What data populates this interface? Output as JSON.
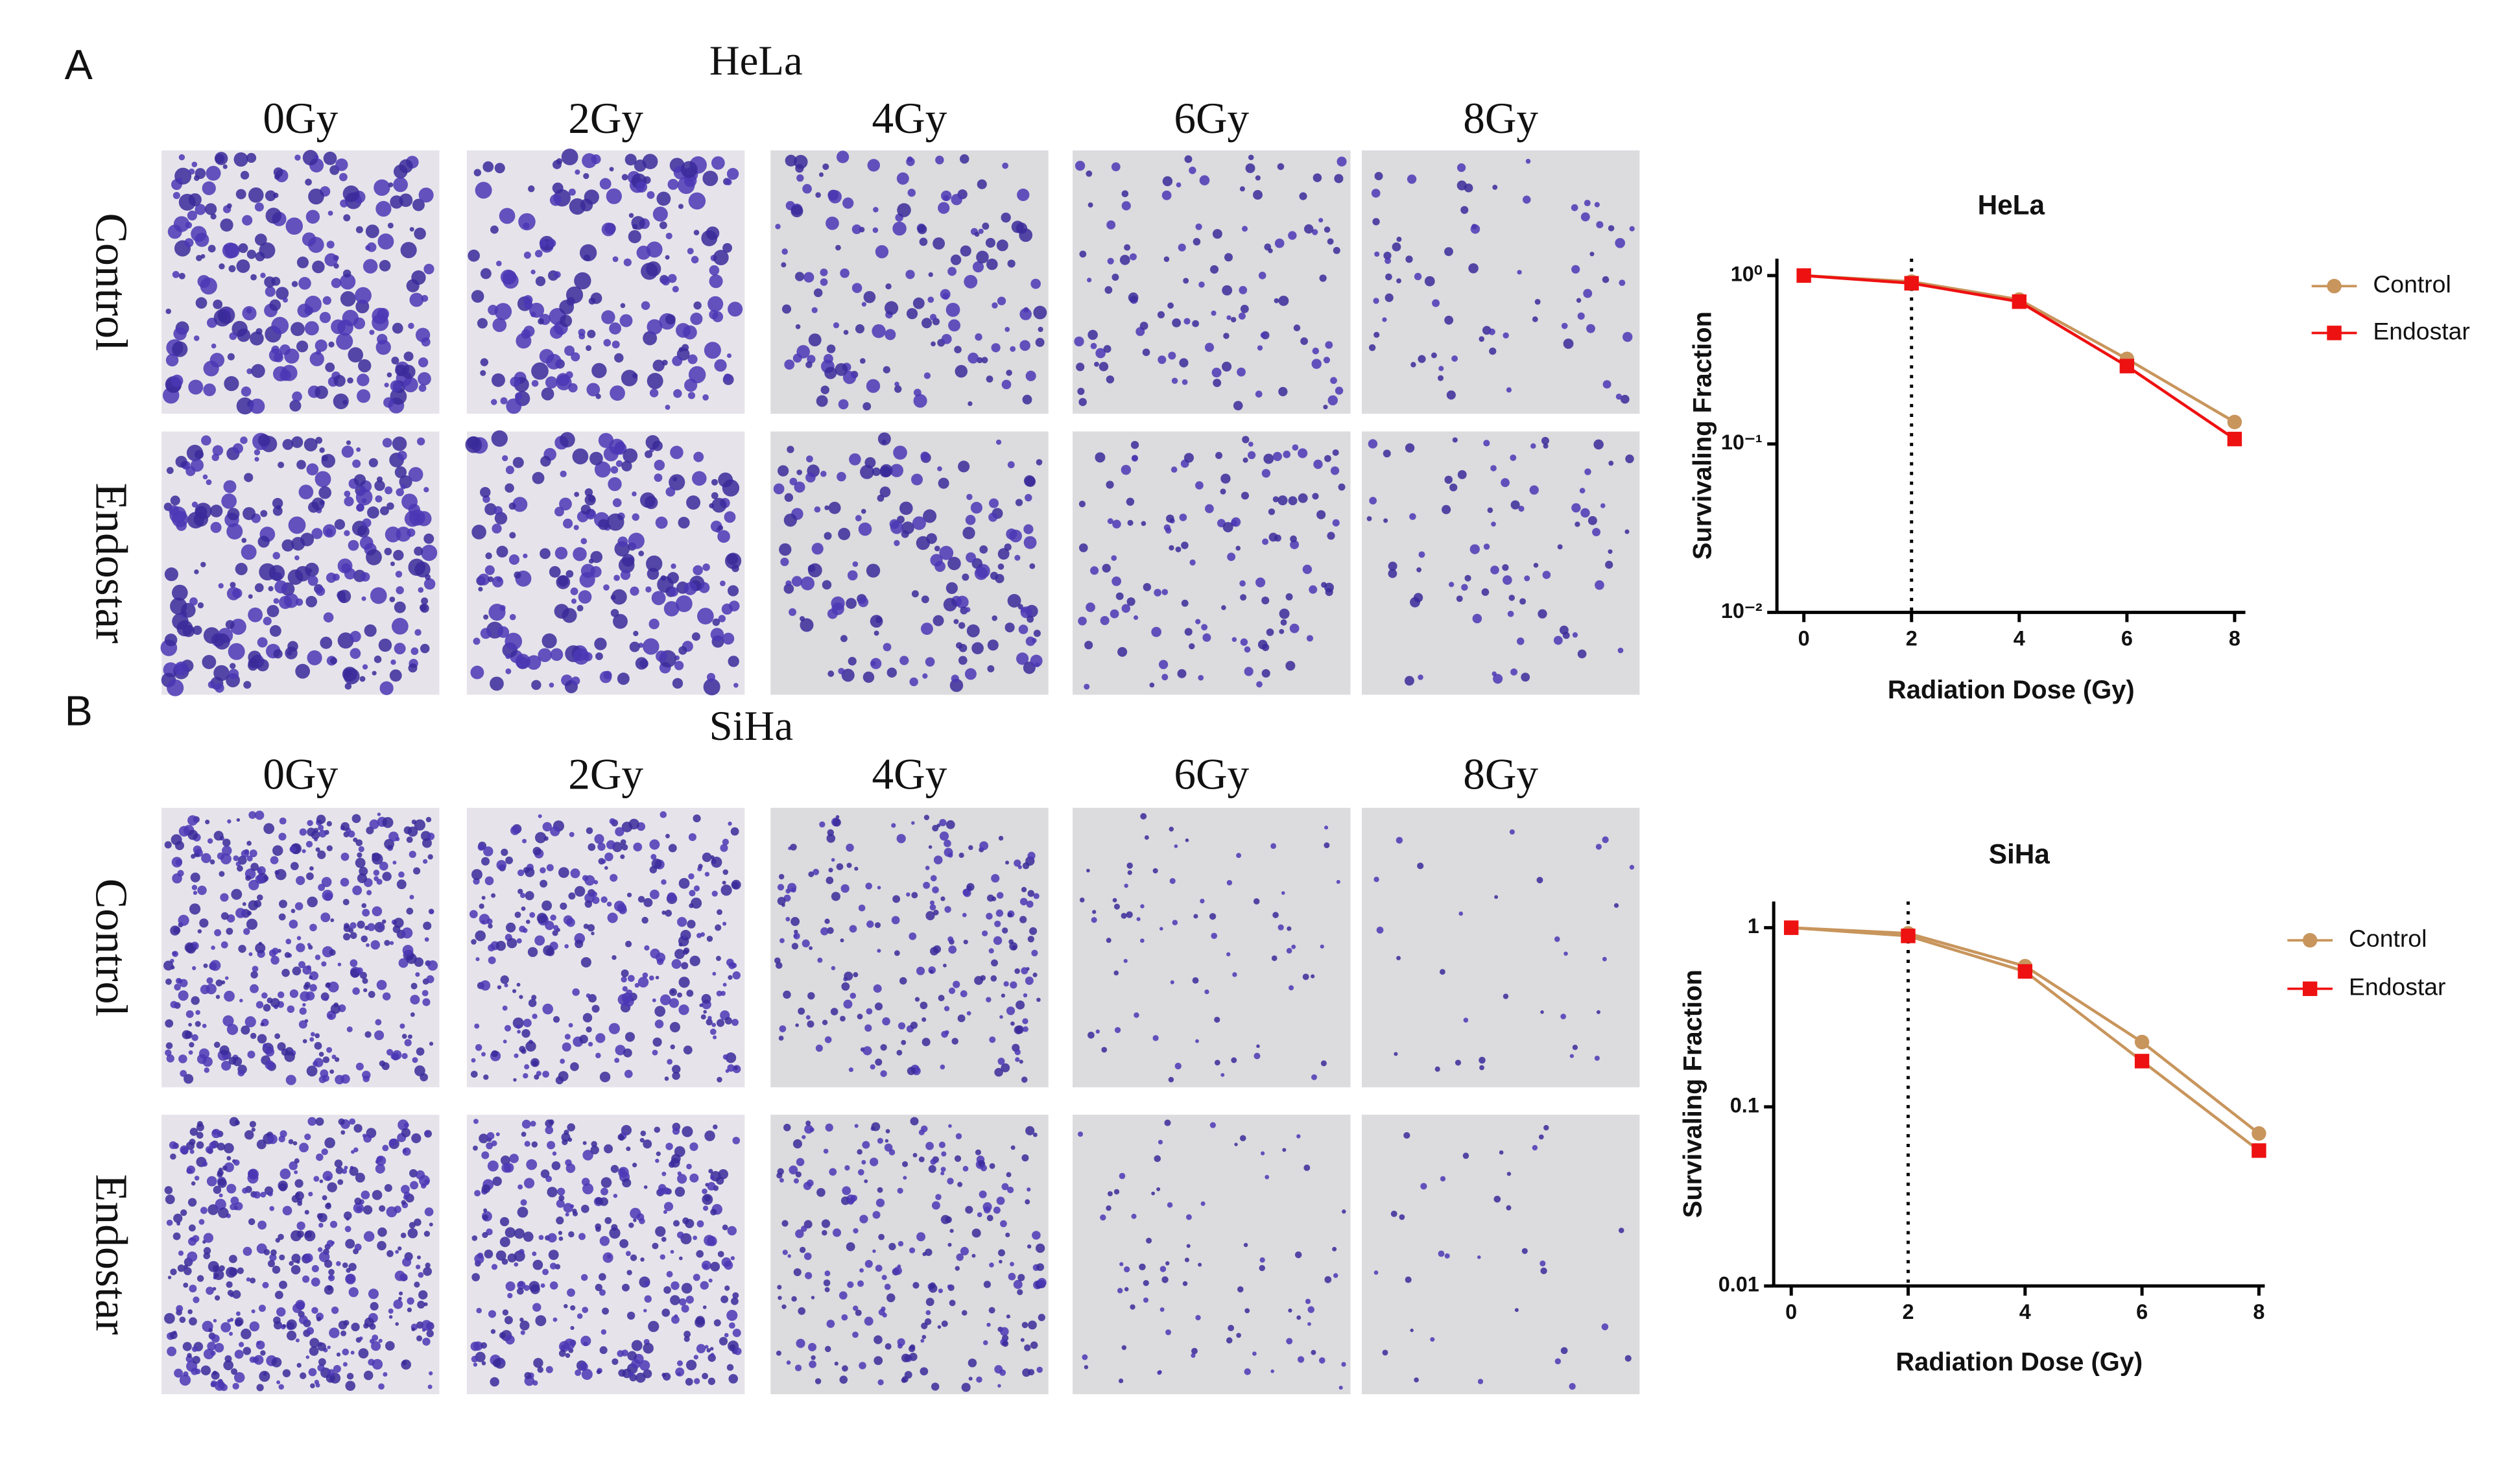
{
  "panels": [
    {
      "label": "A",
      "title": "HeLa",
      "doses": [
        "0Gy",
        "2Gy",
        "4Gy",
        "6Gy",
        "8Gy"
      ],
      "rows": [
        "Control",
        "Endostar"
      ]
    },
    {
      "label": "B",
      "title": "SiHa",
      "doses": [
        "0Gy",
        "2Gy",
        "4Gy",
        "6Gy",
        "8Gy"
      ],
      "rows": [
        "Control",
        "Endostar"
      ]
    }
  ],
  "chart_data": [
    {
      "type": "line",
      "title": "HeLa",
      "x_label": "Radiation Dose (Gy)",
      "y_label": "Survivaling Fraction",
      "x": [
        0,
        2,
        4,
        6,
        8
      ],
      "xlim": [
        -0.5,
        8.2
      ],
      "xticks": [
        0,
        2,
        4,
        6,
        8
      ],
      "ylim": [
        0.01,
        1.26
      ],
      "log_y": true,
      "yticks": [
        {
          "value": 1,
          "label": "10⁰"
        },
        {
          "value": 0.1,
          "label": "10⁻¹"
        },
        {
          "value": 0.01,
          "label": "10⁻²"
        }
      ],
      "reference_x": 2,
      "legend": "right",
      "series": [
        {
          "name": "Control",
          "color": "#c8955c",
          "line_color": "#c8955c",
          "marker": "circle",
          "values": [
            1,
            0.92,
            0.72,
            0.32,
            0.135
          ]
        },
        {
          "name": "Endostar",
          "color": "#ee1111",
          "line_color": "#ee1111",
          "marker": "square",
          "values": [
            1,
            0.9,
            0.7,
            0.29,
            0.107
          ]
        }
      ]
    },
    {
      "type": "line",
      "title": "SiHa",
      "x_label": "Radiation Dose (Gy)",
      "y_label": "Survivaling Fraction",
      "x": [
        0,
        2,
        4,
        6,
        8
      ],
      "xlim": [
        -0.3,
        8.1
      ],
      "xticks": [
        0,
        2,
        4,
        6,
        8
      ],
      "ylim": [
        0.01,
        1.4
      ],
      "log_y": true,
      "yticks": [
        1,
        0.1,
        0.01
      ],
      "reference_x": 2,
      "legend": "right",
      "series": [
        {
          "name": "Control",
          "color": "#c8955c",
          "line_color": "#c8955c",
          "marker": "circle",
          "values": [
            1,
            0.93,
            0.61,
            0.23,
            0.071
          ]
        },
        {
          "name": "Endostar",
          "color": "#ee1111",
          "line_color": "#c8955c",
          "marker": "square",
          "values": [
            1,
            0.9,
            0.57,
            0.18,
            0.057
          ]
        }
      ]
    }
  ]
}
